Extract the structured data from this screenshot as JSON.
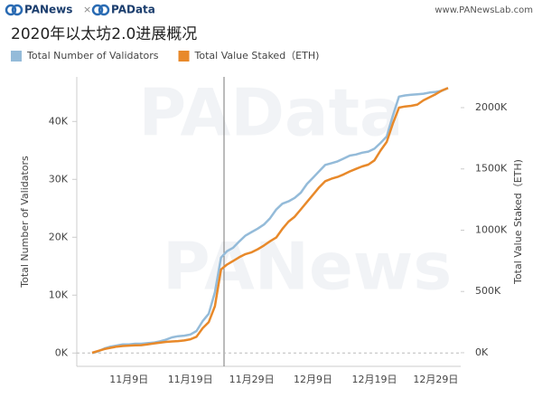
{
  "header": {
    "brand_left": "PANews",
    "separator": "×",
    "brand_right": "PAData",
    "site": "www.PANewsLab.com"
  },
  "watermarks": [
    "PAData",
    "PANews"
  ],
  "chart_data": {
    "type": "line",
    "title": "2020年以太坊2.0进展概况",
    "y_label": "Total Number of Validators",
    "y2_label": "Total Value Staked（ETH)",
    "categories": [
      null,
      null,
      null,
      null,
      null,
      null,
      "11月9日",
      null,
      null,
      null,
      null,
      null,
      null,
      null,
      null,
      null,
      "11月19日",
      null,
      null,
      null,
      null,
      null,
      null,
      null,
      null,
      null,
      "11月29日",
      null,
      null,
      null,
      null,
      null,
      null,
      null,
      null,
      null,
      "12月9日",
      null,
      null,
      null,
      null,
      null,
      null,
      null,
      null,
      null,
      "12月19日",
      null,
      null,
      null,
      null,
      null,
      null,
      null,
      null,
      null,
      "12月29日",
      null,
      null
    ],
    "series": [
      {
        "name": "Total Number of Validators",
        "color": "#94bbd9",
        "axis": "y",
        "values": [
          0,
          300,
          800,
          1100,
          1300,
          1500,
          1500,
          1600,
          1600,
          1700,
          1800,
          2000,
          2300,
          2700,
          2900,
          3000,
          3200,
          3800,
          5500,
          6800,
          10500,
          16500,
          17600,
          18200,
          19300,
          20300,
          20900,
          21500,
          22200,
          23300,
          24800,
          25800,
          26200,
          26800,
          27700,
          29200,
          30300,
          31400,
          32500,
          32800,
          33100,
          33600,
          34100,
          34300,
          34600,
          34800,
          35300,
          36300,
          37400,
          41000,
          44300,
          44500,
          44600,
          44700,
          44800,
          45000,
          45100,
          45300,
          45800
        ]
      },
      {
        "name": "Total Value Staked（ETH)",
        "color": "#e8892a",
        "axis": "y2",
        "values": [
          0,
          15000,
          30000,
          40000,
          50000,
          55000,
          58000,
          60000,
          62000,
          68000,
          75000,
          82000,
          88000,
          92000,
          95000,
          100000,
          110000,
          130000,
          200000,
          250000,
          380000,
          680000,
          720000,
          750000,
          780000,
          805000,
          820000,
          845000,
          875000,
          910000,
          940000,
          1010000,
          1070000,
          1110000,
          1170000,
          1230000,
          1290000,
          1350000,
          1400000,
          1420000,
          1435000,
          1455000,
          1480000,
          1500000,
          1520000,
          1535000,
          1570000,
          1650000,
          1720000,
          1870000,
          2000000,
          2010000,
          2015000,
          2025000,
          2060000,
          2085000,
          2110000,
          2140000,
          2160000
        ]
      }
    ],
    "ylim": [
      -2300,
      47700
    ],
    "yticks": [
      {
        "value": 0,
        "label": "0K"
      },
      {
        "value": 10000,
        "label": "10K"
      },
      {
        "value": 20000,
        "label": "20K"
      },
      {
        "value": 30000,
        "label": "30K"
      },
      {
        "value": 40000,
        "label": "40K"
      }
    ],
    "y2lim": [
      -111000,
      2251000
    ],
    "y2ticks": [
      {
        "value": 0,
        "label": "0K"
      },
      {
        "value": 500000,
        "label": "500K"
      },
      {
        "value": 1000000,
        "label": "1000K"
      },
      {
        "value": 1500000,
        "label": "1500K"
      },
      {
        "value": 2000000,
        "label": "2000K"
      }
    ]
  }
}
